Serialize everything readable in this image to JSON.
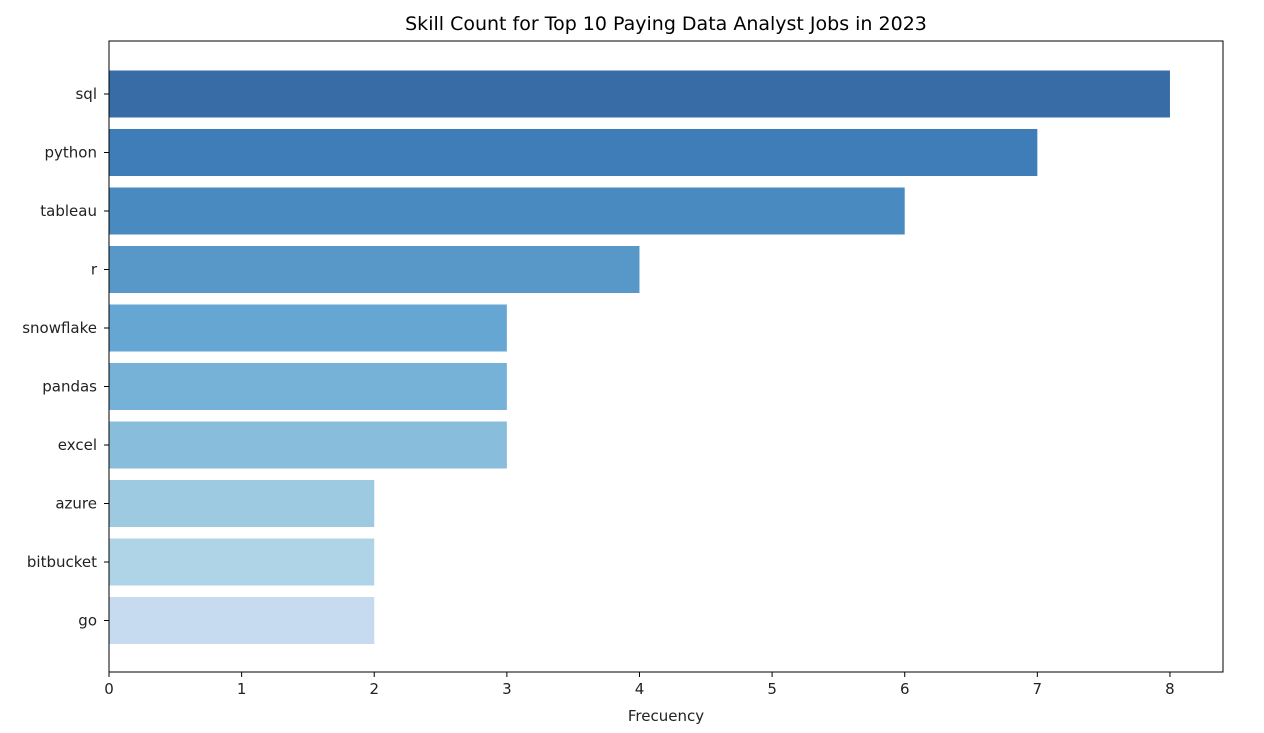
{
  "chart_data": {
    "type": "bar",
    "orientation": "horizontal",
    "title": "Skill Count for Top 10 Paying Data Analyst Jobs in 2023",
    "xlabel": "Frecuency",
    "ylabel": "",
    "xlim": [
      0,
      8.4
    ],
    "xticks": [
      "0",
      "1",
      "2",
      "3",
      "4",
      "5",
      "6",
      "7",
      "8"
    ],
    "categories": [
      "sql",
      "python",
      "tableau",
      "r",
      "snowflake",
      "pandas",
      "excel",
      "azure",
      "bitbucket",
      "go"
    ],
    "values": [
      8,
      7,
      6,
      4,
      3,
      3,
      3,
      2,
      2,
      2
    ],
    "colors": [
      "#376ca6",
      "#3e7db7",
      "#498bc0",
      "#5798c9",
      "#66a6d2",
      "#76b1d7",
      "#88bddc",
      "#9ecae1",
      "#b0d4e7",
      "#c6dbef"
    ],
    "grid": false,
    "legend": "none"
  }
}
